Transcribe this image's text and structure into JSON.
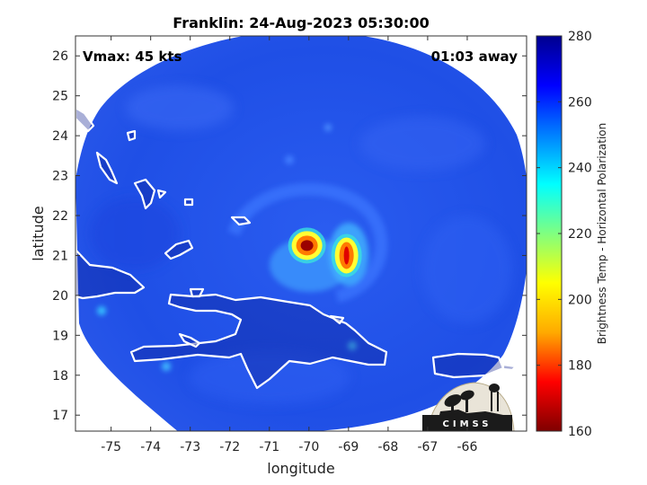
{
  "chart_data": {
    "type": "heatmap",
    "title": "Franklin: 24-Aug-2023 05:30:00",
    "xlabel": "longitude",
    "ylabel": "latitude",
    "xlim": [
      -75.9,
      -64.5
    ],
    "ylim": [
      16.6,
      26.5
    ],
    "x_ticks": [
      "-75",
      "-74",
      "-73",
      "-72",
      "-71",
      "-70",
      "-69",
      "-68",
      "-67",
      "-66"
    ],
    "x_tick_values": [
      -75,
      -74,
      -73,
      -72,
      -71,
      -70,
      -69,
      -68,
      -67,
      -66
    ],
    "y_ticks": [
      "17",
      "18",
      "19",
      "20",
      "21",
      "22",
      "23",
      "24",
      "25",
      "26"
    ],
    "y_tick_values": [
      17,
      18,
      19,
      20,
      21,
      22,
      23,
      24,
      25,
      26
    ],
    "colorbar": {
      "label": "Brightness Temp - Horizontal Polarization",
      "range": [
        160,
        280
      ],
      "ticks": [
        "160",
        "180",
        "200",
        "220",
        "240",
        "260",
        "280"
      ],
      "tick_values": [
        160,
        180,
        200,
        220,
        240,
        260,
        280
      ],
      "colors": [
        "#7f0000",
        "#ff0000",
        "#ffaa00",
        "#ffff00",
        "#80ff80",
        "#00ffff",
        "#0080ff",
        "#0000ff",
        "#00008f"
      ]
    },
    "annotations": {
      "vmax": "Vmax: 45 kts",
      "time_away": "01:03 away"
    },
    "background_field": {
      "value": 262,
      "color": "#1f4fe6"
    },
    "cold_features": [
      {
        "lon": -70.05,
        "lat": 21.25,
        "min_tb": 170
      },
      {
        "lon": -69.05,
        "lat": 21.0,
        "min_tb": 185
      }
    ],
    "logo": "CIMSS"
  }
}
